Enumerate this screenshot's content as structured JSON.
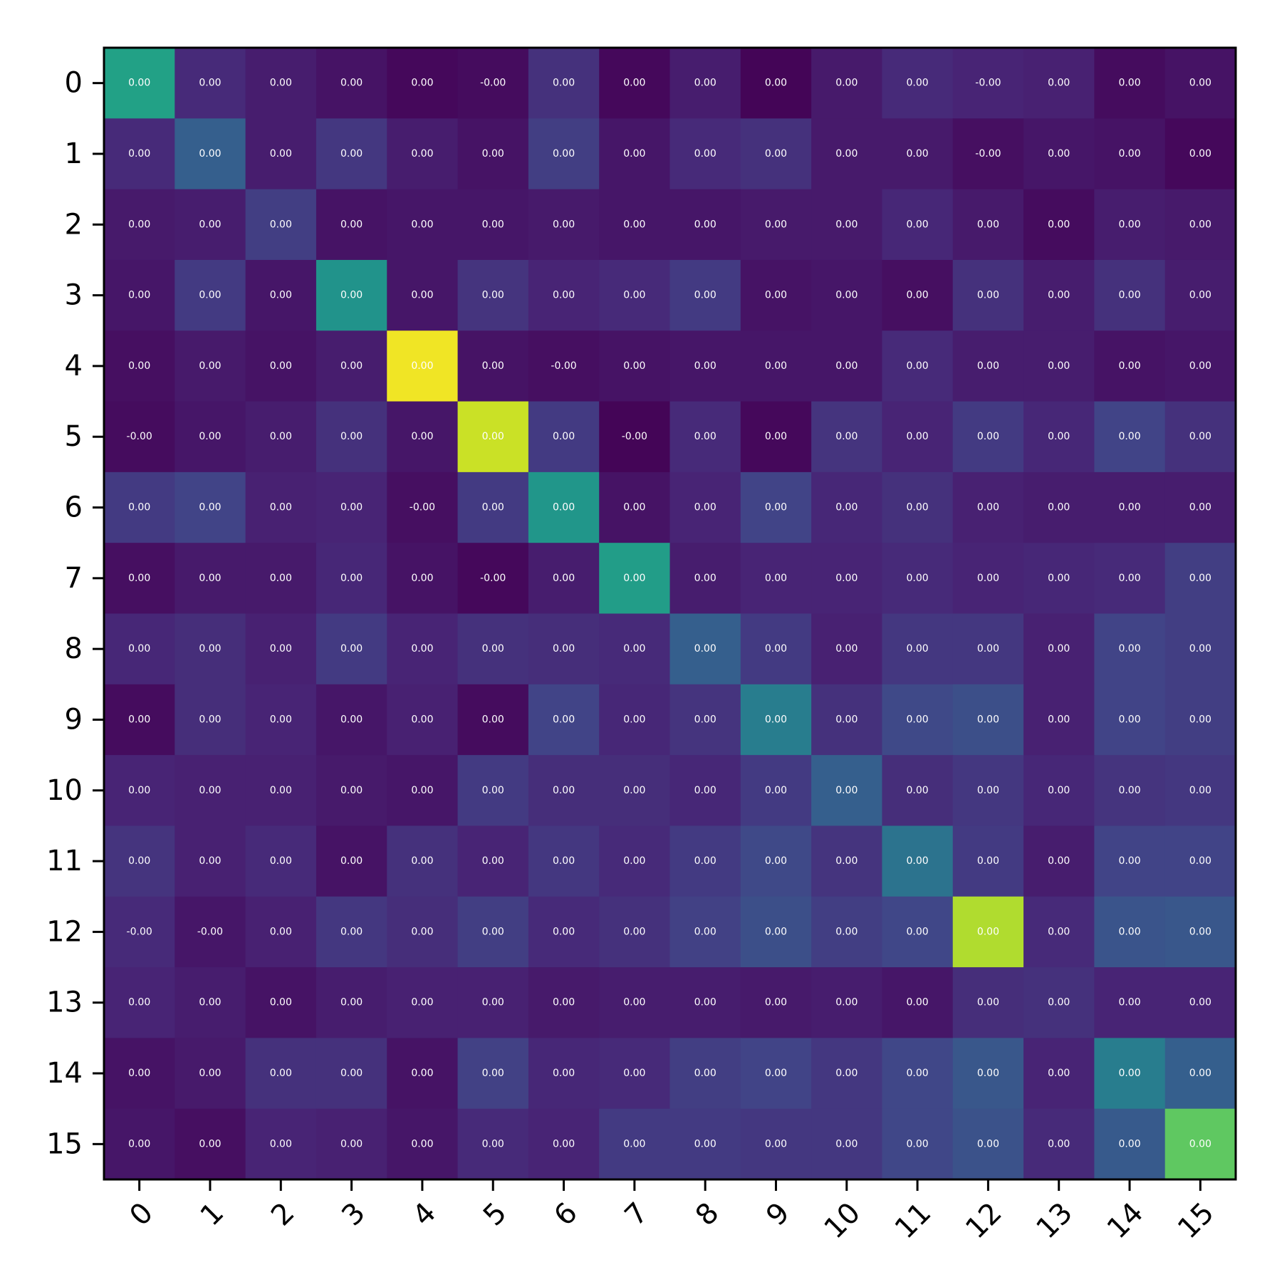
{
  "chart_data": {
    "type": "heatmap",
    "colormap": "viridis",
    "x_tick_labels": [
      "0",
      "1",
      "2",
      "3",
      "4",
      "5",
      "6",
      "7",
      "8",
      "9",
      "10",
      "11",
      "12",
      "13",
      "14",
      "15"
    ],
    "y_tick_labels": [
      "0",
      "1",
      "2",
      "3",
      "4",
      "5",
      "6",
      "7",
      "8",
      "9",
      "10",
      "11",
      "12",
      "13",
      "14",
      "15"
    ],
    "color_range": [
      0,
      1
    ],
    "intensity": [
      [
        0.57,
        0.12,
        0.08,
        0.05,
        0.02,
        0.03,
        0.14,
        0.02,
        0.08,
        0.01,
        0.07,
        0.12,
        0.1,
        0.09,
        0.03,
        0.05
      ],
      [
        0.12,
        0.3,
        0.08,
        0.16,
        0.08,
        0.05,
        0.18,
        0.06,
        0.12,
        0.14,
        0.07,
        0.07,
        0.04,
        0.06,
        0.05,
        0.02
      ],
      [
        0.07,
        0.08,
        0.18,
        0.05,
        0.06,
        0.06,
        0.07,
        0.06,
        0.06,
        0.07,
        0.07,
        0.11,
        0.07,
        0.03,
        0.08,
        0.07
      ],
      [
        0.06,
        0.17,
        0.06,
        0.51,
        0.06,
        0.15,
        0.1,
        0.12,
        0.17,
        0.05,
        0.06,
        0.04,
        0.14,
        0.08,
        0.14,
        0.08
      ],
      [
        0.04,
        0.07,
        0.05,
        0.08,
        0.98,
        0.05,
        0.04,
        0.05,
        0.06,
        0.06,
        0.06,
        0.12,
        0.08,
        0.08,
        0.05,
        0.06
      ],
      [
        0.03,
        0.06,
        0.08,
        0.14,
        0.06,
        0.92,
        0.17,
        0.01,
        0.12,
        0.02,
        0.15,
        0.1,
        0.17,
        0.11,
        0.2,
        0.14
      ],
      [
        0.17,
        0.2,
        0.09,
        0.1,
        0.04,
        0.17,
        0.52,
        0.05,
        0.1,
        0.2,
        0.11,
        0.14,
        0.09,
        0.08,
        0.08,
        0.08
      ],
      [
        0.04,
        0.07,
        0.07,
        0.11,
        0.05,
        0.02,
        0.08,
        0.55,
        0.08,
        0.1,
        0.1,
        0.12,
        0.1,
        0.11,
        0.12,
        0.18
      ],
      [
        0.11,
        0.13,
        0.09,
        0.17,
        0.1,
        0.14,
        0.13,
        0.12,
        0.3,
        0.17,
        0.09,
        0.16,
        0.16,
        0.09,
        0.2,
        0.18
      ],
      [
        0.03,
        0.13,
        0.1,
        0.06,
        0.09,
        0.03,
        0.2,
        0.11,
        0.15,
        0.42,
        0.14,
        0.22,
        0.24,
        0.09,
        0.2,
        0.18
      ],
      [
        0.1,
        0.09,
        0.09,
        0.07,
        0.06,
        0.17,
        0.13,
        0.13,
        0.11,
        0.17,
        0.3,
        0.13,
        0.16,
        0.11,
        0.15,
        0.16
      ],
      [
        0.15,
        0.09,
        0.12,
        0.05,
        0.14,
        0.1,
        0.16,
        0.12,
        0.17,
        0.22,
        0.15,
        0.38,
        0.17,
        0.08,
        0.2,
        0.2
      ],
      [
        0.12,
        0.06,
        0.09,
        0.16,
        0.13,
        0.18,
        0.12,
        0.14,
        0.19,
        0.24,
        0.18,
        0.21,
        0.88,
        0.12,
        0.26,
        0.27
      ],
      [
        0.1,
        0.08,
        0.05,
        0.08,
        0.09,
        0.09,
        0.07,
        0.08,
        0.08,
        0.07,
        0.08,
        0.06,
        0.13,
        0.14,
        0.1,
        0.1
      ],
      [
        0.05,
        0.07,
        0.14,
        0.14,
        0.05,
        0.19,
        0.11,
        0.12,
        0.18,
        0.2,
        0.16,
        0.21,
        0.27,
        0.1,
        0.42,
        0.3
      ],
      [
        0.06,
        0.04,
        0.1,
        0.09,
        0.06,
        0.12,
        0.1,
        0.17,
        0.17,
        0.16,
        0.16,
        0.21,
        0.25,
        0.12,
        0.28,
        0.75
      ]
    ],
    "cell_labels": [
      [
        "0.00",
        "0.00",
        "0.00",
        "0.00",
        "0.00",
        "-0.00",
        "0.00",
        "0.00",
        "0.00",
        "0.00",
        "0.00",
        "0.00",
        "-0.00",
        "0.00",
        "0.00",
        "0.00"
      ],
      [
        "0.00",
        "0.00",
        "0.00",
        "0.00",
        "0.00",
        "0.00",
        "0.00",
        "0.00",
        "0.00",
        "0.00",
        "0.00",
        "0.00",
        "-0.00",
        "0.00",
        "0.00",
        "0.00"
      ],
      [
        "0.00",
        "0.00",
        "0.00",
        "0.00",
        "0.00",
        "0.00",
        "0.00",
        "0.00",
        "0.00",
        "0.00",
        "0.00",
        "0.00",
        "0.00",
        "0.00",
        "0.00",
        "0.00"
      ],
      [
        "0.00",
        "0.00",
        "0.00",
        "0.00",
        "0.00",
        "0.00",
        "0.00",
        "0.00",
        "0.00",
        "0.00",
        "0.00",
        "0.00",
        "0.00",
        "0.00",
        "0.00",
        "0.00"
      ],
      [
        "0.00",
        "0.00",
        "0.00",
        "0.00",
        "0.00",
        "0.00",
        "-0.00",
        "0.00",
        "0.00",
        "0.00",
        "0.00",
        "0.00",
        "0.00",
        "0.00",
        "0.00",
        "0.00"
      ],
      [
        "-0.00",
        "0.00",
        "0.00",
        "0.00",
        "0.00",
        "0.00",
        "0.00",
        "-0.00",
        "0.00",
        "0.00",
        "0.00",
        "0.00",
        "0.00",
        "0.00",
        "0.00",
        "0.00"
      ],
      [
        "0.00",
        "0.00",
        "0.00",
        "0.00",
        "-0.00",
        "0.00",
        "0.00",
        "0.00",
        "0.00",
        "0.00",
        "0.00",
        "0.00",
        "0.00",
        "0.00",
        "0.00",
        "0.00"
      ],
      [
        "0.00",
        "0.00",
        "0.00",
        "0.00",
        "0.00",
        "-0.00",
        "0.00",
        "0.00",
        "0.00",
        "0.00",
        "0.00",
        "0.00",
        "0.00",
        "0.00",
        "0.00",
        "0.00"
      ],
      [
        "0.00",
        "0.00",
        "0.00",
        "0.00",
        "0.00",
        "0.00",
        "0.00",
        "0.00",
        "0.00",
        "0.00",
        "0.00",
        "0.00",
        "0.00",
        "0.00",
        "0.00",
        "0.00"
      ],
      [
        "0.00",
        "0.00",
        "0.00",
        "0.00",
        "0.00",
        "0.00",
        "0.00",
        "0.00",
        "0.00",
        "0.00",
        "0.00",
        "0.00",
        "0.00",
        "0.00",
        "0.00",
        "0.00"
      ],
      [
        "0.00",
        "0.00",
        "0.00",
        "0.00",
        "0.00",
        "0.00",
        "0.00",
        "0.00",
        "0.00",
        "0.00",
        "0.00",
        "0.00",
        "0.00",
        "0.00",
        "0.00",
        "0.00"
      ],
      [
        "0.00",
        "0.00",
        "0.00",
        "0.00",
        "0.00",
        "0.00",
        "0.00",
        "0.00",
        "0.00",
        "0.00",
        "0.00",
        "0.00",
        "0.00",
        "0.00",
        "0.00",
        "0.00"
      ],
      [
        "-0.00",
        "-0.00",
        "0.00",
        "0.00",
        "0.00",
        "0.00",
        "0.00",
        "0.00",
        "0.00",
        "0.00",
        "0.00",
        "0.00",
        "0.00",
        "0.00",
        "0.00",
        "0.00"
      ],
      [
        "0.00",
        "0.00",
        "0.00",
        "0.00",
        "0.00",
        "0.00",
        "0.00",
        "0.00",
        "0.00",
        "0.00",
        "0.00",
        "0.00",
        "0.00",
        "0.00",
        "0.00",
        "0.00"
      ],
      [
        "0.00",
        "0.00",
        "0.00",
        "0.00",
        "0.00",
        "0.00",
        "0.00",
        "0.00",
        "0.00",
        "0.00",
        "0.00",
        "0.00",
        "0.00",
        "0.00",
        "0.00",
        "0.00"
      ],
      [
        "0.00",
        "0.00",
        "0.00",
        "0.00",
        "0.00",
        "0.00",
        "0.00",
        "0.00",
        "0.00",
        "0.00",
        "0.00",
        "0.00",
        "0.00",
        "0.00",
        "0.00",
        "0.00"
      ]
    ],
    "title": "",
    "xlabel": "",
    "ylabel": "",
    "grid": false
  }
}
